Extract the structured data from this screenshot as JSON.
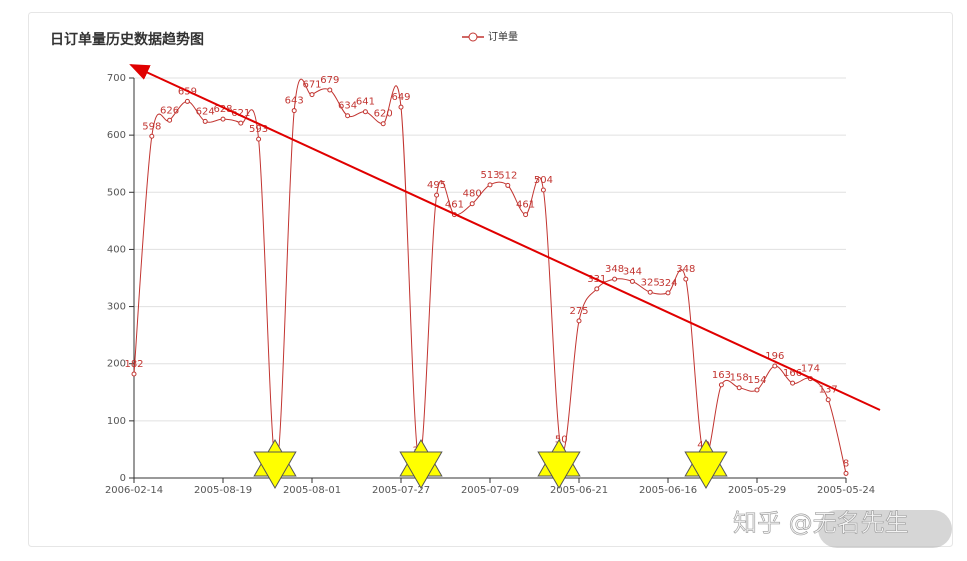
{
  "chart_data": {
    "type": "line",
    "title": "日订单量历史数据趋势图",
    "categories": [
      "2006-02-14",
      null,
      null,
      null,
      null,
      "2005-08-19",
      null,
      null,
      null,
      null,
      "2005-08-01",
      null,
      null,
      null,
      null,
      "2005-07-27",
      null,
      null,
      null,
      null,
      "2005-07-09",
      null,
      null,
      null,
      null,
      "2005-06-21",
      null,
      null,
      null,
      null,
      "2005-06-16",
      null,
      null,
      null,
      null,
      "2005-05-29",
      null,
      null,
      null,
      null,
      "2005-05-24"
    ],
    "series": [
      {
        "name": "订单量",
        "color": "#c23531",
        "values": [
          182,
          598,
          626,
          659,
          624,
          628,
          621,
          593,
          20,
          643,
          671,
          679,
          634,
          641,
          620,
          649,
          31,
          495,
          461,
          480,
          513,
          512,
          461,
          504,
          50,
          275,
          331,
          348,
          344,
          325,
          324,
          348,
          40,
          163,
          158,
          154,
          196,
          166,
          174,
          137,
          8
        ]
      }
    ],
    "ylim": [
      0,
      700
    ],
    "yticks": [
      0,
      100,
      200,
      300,
      400,
      500,
      600,
      700
    ],
    "grid": true
  },
  "watermark": "知乎 @无名先生"
}
